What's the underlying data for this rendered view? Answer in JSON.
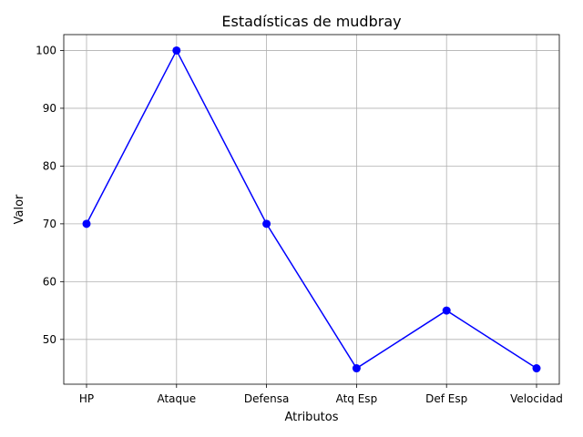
{
  "chart_data": {
    "type": "line",
    "title": "Estadísticas de mudbray",
    "xlabel": "Atributos",
    "ylabel": "Valor",
    "categories": [
      "HP",
      "Ataque",
      "Defensa",
      "Atq Esp",
      "Def Esp",
      "Velocidad"
    ],
    "series": [
      {
        "values": [
          70,
          100,
          70,
          45,
          55,
          45
        ],
        "color": "#0000ff",
        "marker": "circle"
      }
    ],
    "ylim": [
      42.25,
      102.75
    ],
    "yticks": [
      50,
      60,
      70,
      80,
      90,
      100
    ],
    "grid": true
  }
}
